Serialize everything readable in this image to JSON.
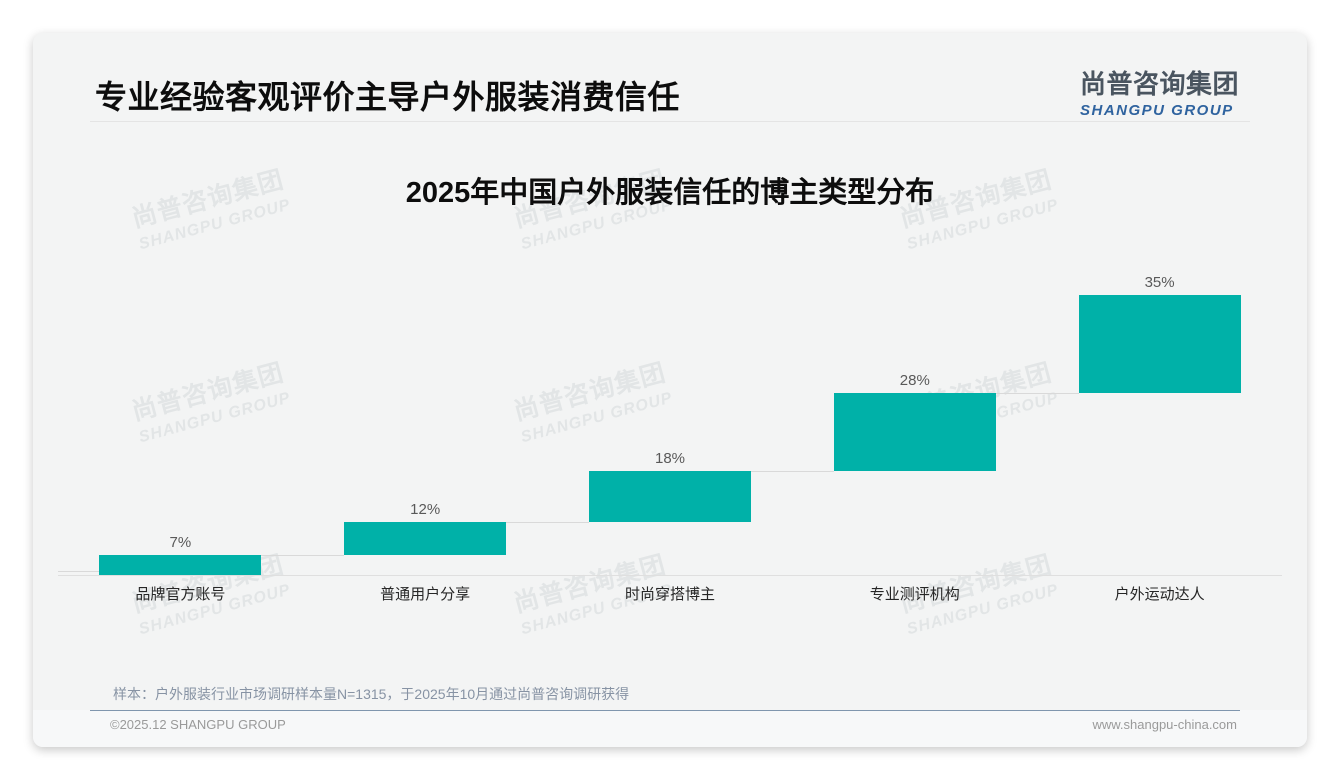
{
  "page": {
    "background": "#ffffff",
    "card_background": "#f3f4f4"
  },
  "header": {
    "title": "专业经验客观评价主导户外服装消费信任",
    "logo": {
      "cn": "尚普咨询集团",
      "en": "SHANGPU GROUP"
    }
  },
  "watermark": {
    "cn": "尚普咨询集团",
    "en": "SHANGPU GROUP"
  },
  "chart_data": {
    "type": "bar",
    "subtype": "waterfall-staircase",
    "title": "2025年中国户外服装信任的博主类型分布",
    "categories": [
      "品牌官方账号",
      "普通用户分享",
      "时尚穿搭博主",
      "专业测评机构",
      "户外运动达人"
    ],
    "values": [
      7,
      12,
      18,
      28,
      35
    ],
    "labels": [
      "7%",
      "12%",
      "18%",
      "28%",
      "35%"
    ],
    "unit": "%",
    "ylim": [
      0,
      100
    ],
    "legend": "none",
    "grid": "off",
    "bar_color": "#00b1a8",
    "connector_color": "#d9d9d9",
    "axis_color": "#dfdfdf",
    "value_label_color": "#595959",
    "category_label_color": "#262626"
  },
  "footnote": {
    "text": "样本：户外服装行业市场调研样本量N=1315，于2025年10月通过尚普咨询调研获得"
  },
  "footer": {
    "left": "©2025.12 SHANGPU GROUP",
    "right": "www.shangpu-china.com"
  }
}
